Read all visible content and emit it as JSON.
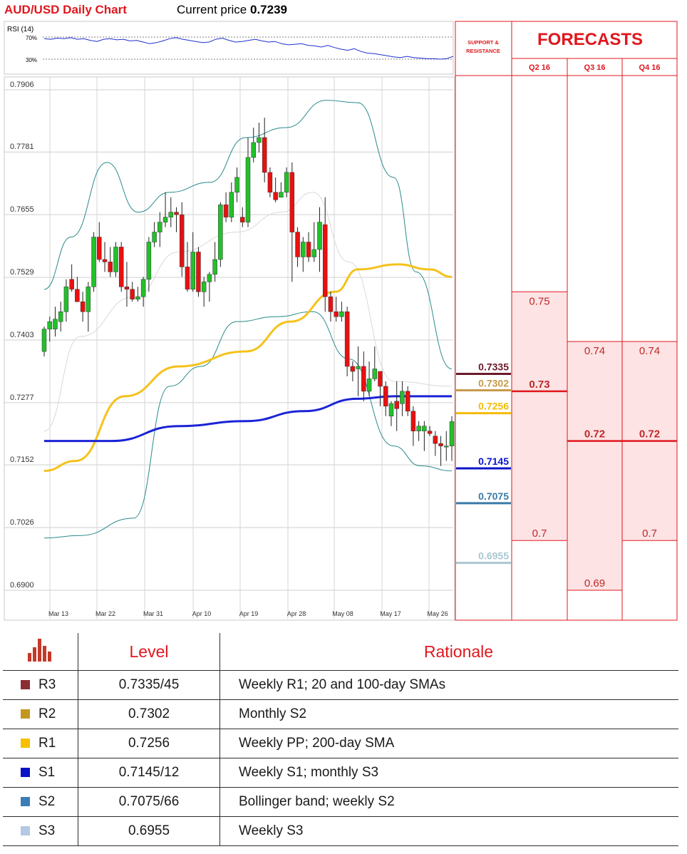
{
  "header": {
    "title": "AUD/USD Daily Chart",
    "price_prefix": "Current price ",
    "price_value": "0.7239"
  },
  "rsi": {
    "label": "RSI (14)",
    "level_high": "70%",
    "level_low": "30%",
    "values": [
      67,
      66,
      68,
      67,
      69,
      66,
      67,
      64,
      62,
      66,
      67,
      65,
      66,
      63,
      64,
      61,
      58,
      60,
      63,
      67,
      69,
      66,
      64,
      62,
      60,
      61,
      66,
      68,
      64,
      61,
      62,
      64,
      66,
      63,
      61,
      62,
      58,
      56,
      57,
      58,
      55,
      54,
      52,
      55,
      51,
      48,
      46,
      49,
      44,
      41,
      40,
      38,
      36,
      34,
      33,
      35,
      33,
      32,
      31,
      31,
      30,
      31,
      35
    ]
  },
  "chart_data": {
    "type": "line",
    "title": "AUD/USD Daily Chart",
    "ylim": [
      0.6877,
      0.7906
    ],
    "y_ticks": [
      "0.7906",
      "0.7781",
      "0.7655",
      "0.7529",
      "0.7403",
      "0.7277",
      "0.7152",
      "0.7026",
      "0.6900"
    ],
    "x_ticks": [
      "Mar 13",
      "Mar 22",
      "Mar 31",
      "Apr 10",
      "Apr 19",
      "Apr 28",
      "May 08",
      "May 17",
      "May 26"
    ],
    "candles": [
      {
        "o": 0.738,
        "h": 0.743,
        "l": 0.737,
        "c": 0.7425
      },
      {
        "o": 0.7425,
        "h": 0.745,
        "l": 0.74,
        "c": 0.744
      },
      {
        "o": 0.7425,
        "h": 0.747,
        "l": 0.741,
        "c": 0.7445
      },
      {
        "o": 0.744,
        "h": 0.748,
        "l": 0.742,
        "c": 0.746
      },
      {
        "o": 0.746,
        "h": 0.7525,
        "l": 0.744,
        "c": 0.751
      },
      {
        "o": 0.7525,
        "h": 0.7555,
        "l": 0.75,
        "c": 0.7505
      },
      {
        "o": 0.7505,
        "h": 0.753,
        "l": 0.748,
        "c": 0.748
      },
      {
        "o": 0.748,
        "h": 0.75,
        "l": 0.744,
        "c": 0.746
      },
      {
        "o": 0.746,
        "h": 0.752,
        "l": 0.742,
        "c": 0.751
      },
      {
        "o": 0.751,
        "h": 0.762,
        "l": 0.75,
        "c": 0.761
      },
      {
        "o": 0.761,
        "h": 0.764,
        "l": 0.756,
        "c": 0.7565
      },
      {
        "o": 0.7565,
        "h": 0.76,
        "l": 0.754,
        "c": 0.756
      },
      {
        "o": 0.756,
        "h": 0.759,
        "l": 0.753,
        "c": 0.754
      },
      {
        "o": 0.754,
        "h": 0.76,
        "l": 0.753,
        "c": 0.759
      },
      {
        "o": 0.759,
        "h": 0.76,
        "l": 0.75,
        "c": 0.751
      },
      {
        "o": 0.751,
        "h": 0.756,
        "l": 0.747,
        "c": 0.7505
      },
      {
        "o": 0.7505,
        "h": 0.752,
        "l": 0.748,
        "c": 0.7485
      },
      {
        "o": 0.7485,
        "h": 0.751,
        "l": 0.748,
        "c": 0.749
      },
      {
        "o": 0.749,
        "h": 0.753,
        "l": 0.747,
        "c": 0.7525
      },
      {
        "o": 0.7525,
        "h": 0.761,
        "l": 0.75,
        "c": 0.76
      },
      {
        "o": 0.76,
        "h": 0.764,
        "l": 0.759,
        "c": 0.762
      },
      {
        "o": 0.762,
        "h": 0.766,
        "l": 0.759,
        "c": 0.764
      },
      {
        "o": 0.764,
        "h": 0.77,
        "l": 0.763,
        "c": 0.765
      },
      {
        "o": 0.765,
        "h": 0.769,
        "l": 0.763,
        "c": 0.766
      },
      {
        "o": 0.766,
        "h": 0.767,
        "l": 0.762,
        "c": 0.7655
      },
      {
        "o": 0.7655,
        "h": 0.768,
        "l": 0.753,
        "c": 0.755
      },
      {
        "o": 0.755,
        "h": 0.76,
        "l": 0.75,
        "c": 0.7505
      },
      {
        "o": 0.7505,
        "h": 0.762,
        "l": 0.75,
        "c": 0.758
      },
      {
        "o": 0.758,
        "h": 0.759,
        "l": 0.749,
        "c": 0.75
      },
      {
        "o": 0.75,
        "h": 0.753,
        "l": 0.747,
        "c": 0.752
      },
      {
        "o": 0.752,
        "h": 0.754,
        "l": 0.748,
        "c": 0.7535
      },
      {
        "o": 0.7535,
        "h": 0.76,
        "l": 0.752,
        "c": 0.7565
      },
      {
        "o": 0.7565,
        "h": 0.768,
        "l": 0.755,
        "c": 0.7675
      },
      {
        "o": 0.7675,
        "h": 0.77,
        "l": 0.764,
        "c": 0.765
      },
      {
        "o": 0.765,
        "h": 0.772,
        "l": 0.764,
        "c": 0.77
      },
      {
        "o": 0.77,
        "h": 0.775,
        "l": 0.768,
        "c": 0.773
      },
      {
        "o": 0.765,
        "h": 0.767,
        "l": 0.763,
        "c": 0.764
      },
      {
        "o": 0.764,
        "h": 0.781,
        "l": 0.763,
        "c": 0.777
      },
      {
        "o": 0.777,
        "h": 0.783,
        "l": 0.776,
        "c": 0.78
      },
      {
        "o": 0.78,
        "h": 0.784,
        "l": 0.778,
        "c": 0.781
      },
      {
        "o": 0.781,
        "h": 0.785,
        "l": 0.772,
        "c": 0.774
      },
      {
        "o": 0.774,
        "h": 0.775,
        "l": 0.769,
        "c": 0.77
      },
      {
        "o": 0.77,
        "h": 0.773,
        "l": 0.768,
        "c": 0.7685
      },
      {
        "o": 0.769,
        "h": 0.772,
        "l": 0.769,
        "c": 0.77
      },
      {
        "o": 0.77,
        "h": 0.775,
        "l": 0.769,
        "c": 0.774
      },
      {
        "o": 0.774,
        "h": 0.776,
        "l": 0.752,
        "c": 0.762
      },
      {
        "o": 0.762,
        "h": 0.763,
        "l": 0.755,
        "c": 0.757
      },
      {
        "o": 0.757,
        "h": 0.761,
        "l": 0.754,
        "c": 0.76
      },
      {
        "o": 0.76,
        "h": 0.762,
        "l": 0.756,
        "c": 0.757
      },
      {
        "o": 0.757,
        "h": 0.764,
        "l": 0.756,
        "c": 0.7585
      },
      {
        "o": 0.7585,
        "h": 0.767,
        "l": 0.754,
        "c": 0.764
      },
      {
        "o": 0.7635,
        "h": 0.769,
        "l": 0.746,
        "c": 0.749
      },
      {
        "o": 0.749,
        "h": 0.75,
        "l": 0.744,
        "c": 0.746
      },
      {
        "o": 0.746,
        "h": 0.749,
        "l": 0.744,
        "c": 0.745
      },
      {
        "o": 0.745,
        "h": 0.748,
        "l": 0.744,
        "c": 0.746
      },
      {
        "o": 0.746,
        "h": 0.747,
        "l": 0.733,
        "c": 0.735
      },
      {
        "o": 0.735,
        "h": 0.736,
        "l": 0.732,
        "c": 0.734
      },
      {
        "o": 0.7345,
        "h": 0.739,
        "l": 0.729,
        "c": 0.735
      },
      {
        "o": 0.735,
        "h": 0.738,
        "l": 0.728,
        "c": 0.73
      },
      {
        "o": 0.73,
        "h": 0.736,
        "l": 0.729,
        "c": 0.7325
      },
      {
        "o": 0.7325,
        "h": 0.739,
        "l": 0.732,
        "c": 0.7345
      },
      {
        "o": 0.734,
        "h": 0.734,
        "l": 0.727,
        "c": 0.731
      },
      {
        "o": 0.731,
        "h": 0.732,
        "l": 0.725,
        "c": 0.727
      },
      {
        "o": 0.725,
        "h": 0.728,
        "l": 0.723,
        "c": 0.7275
      },
      {
        "o": 0.728,
        "h": 0.732,
        "l": 0.722,
        "c": 0.7265
      },
      {
        "o": 0.7275,
        "h": 0.732,
        "l": 0.725,
        "c": 0.73
      },
      {
        "o": 0.73,
        "h": 0.731,
        "l": 0.725,
        "c": 0.726
      },
      {
        "o": 0.726,
        "h": 0.727,
        "l": 0.719,
        "c": 0.722
      },
      {
        "o": 0.722,
        "h": 0.724,
        "l": 0.72,
        "c": 0.723
      },
      {
        "o": 0.722,
        "h": 0.724,
        "l": 0.718,
        "c": 0.723
      },
      {
        "o": 0.722,
        "h": 0.723,
        "l": 0.721,
        "c": 0.7215
      },
      {
        "o": 0.721,
        "h": 0.722,
        "l": 0.717,
        "c": 0.7195
      },
      {
        "o": 0.7195,
        "h": 0.721,
        "l": 0.715,
        "c": 0.719
      },
      {
        "o": 0.719,
        "h": 0.722,
        "l": 0.716,
        "c": 0.719
      },
      {
        "o": 0.719,
        "h": 0.725,
        "l": 0.716,
        "c": 0.7239
      }
    ],
    "lines": {
      "bb_upper": [
        [
          0,
          0.7505
        ],
        [
          6,
          0.761
        ],
        [
          14,
          0.776
        ],
        [
          21,
          0.766
        ],
        [
          28,
          0.77
        ],
        [
          37,
          0.772
        ],
        [
          45,
          0.781
        ],
        [
          54,
          0.783
        ],
        [
          63,
          0.7885
        ],
        [
          70,
          0.788
        ],
        [
          78,
          0.773
        ],
        [
          83,
          0.754
        ],
        [
          91,
          0.7345
        ]
      ],
      "bb_mid": [
        [
          0,
          0.722
        ],
        [
          8,
          0.741
        ],
        [
          20,
          0.749
        ],
        [
          30,
          0.758
        ],
        [
          43,
          0.762
        ],
        [
          53,
          0.766
        ],
        [
          60,
          0.77
        ],
        [
          68,
          0.756
        ],
        [
          78,
          0.732
        ],
        [
          91,
          0.731
        ]
      ],
      "bb_lower": [
        [
          0,
          0.7005
        ],
        [
          8,
          0.701
        ],
        [
          20,
          0.7045
        ],
        [
          28,
          0.731
        ],
        [
          35,
          0.735
        ],
        [
          43,
          0.744
        ],
        [
          52,
          0.745
        ],
        [
          60,
          0.746
        ],
        [
          68,
          0.7365
        ],
        [
          78,
          0.719
        ],
        [
          84,
          0.715
        ],
        [
          91,
          0.714
        ]
      ],
      "sma_yellow": [
        [
          0,
          0.714
        ],
        [
          7,
          0.716
        ],
        [
          18,
          0.729
        ],
        [
          30,
          0.735
        ],
        [
          45,
          0.738
        ],
        [
          55,
          0.744
        ],
        [
          65,
          0.75
        ],
        [
          70,
          0.7545
        ],
        [
          79,
          0.7555
        ],
        [
          86,
          0.7545
        ],
        [
          91,
          0.753
        ]
      ],
      "sma_blue": [
        [
          0,
          0.72
        ],
        [
          15,
          0.72
        ],
        [
          30,
          0.723
        ],
        [
          45,
          0.724
        ],
        [
          58,
          0.726
        ],
        [
          70,
          0.7285
        ],
        [
          78,
          0.729
        ],
        [
          91,
          0.729
        ]
      ]
    }
  },
  "support_resistance": {
    "heading_line1": "SUPPORT &",
    "heading_line2": "RESISTANCE",
    "levels": [
      {
        "label": "0.7335",
        "value": 0.7335,
        "color": "#6b1a2a"
      },
      {
        "label": "0.7302",
        "value": 0.7302,
        "color": "#c79a4a"
      },
      {
        "label": "0.7256",
        "value": 0.7256,
        "color": "#f2bc00"
      },
      {
        "label": "0.7145",
        "value": 0.7145,
        "color": "#0d14c9"
      },
      {
        "label": "0.7075",
        "value": 0.7075,
        "color": "#3a7aa8"
      },
      {
        "label": "0.6955",
        "value": 0.6955,
        "color": "#a9c7d1"
      }
    ]
  },
  "forecasts": {
    "title": "FORECASTS",
    "columns": [
      {
        "label": "Q2 16",
        "high": 0.75,
        "high_label": "0.75",
        "mid": 0.73,
        "mid_label": "0.73",
        "low": 0.7,
        "low_label": "0.7"
      },
      {
        "label": "Q3 16",
        "high": 0.74,
        "high_label": "0.74",
        "mid": 0.72,
        "mid_label": "0.72",
        "low": 0.69,
        "low_label": "0.69"
      },
      {
        "label": "Q4 16",
        "high": 0.74,
        "high_label": "0.74",
        "mid": 0.72,
        "mid_label": "0.72",
        "low": 0.7,
        "low_label": "0.7"
      }
    ]
  },
  "table": {
    "headers": {
      "level": "Level",
      "rationale": "Rationale"
    },
    "rows": [
      {
        "tag": "R3",
        "color": "#8b2e33",
        "level": "0.7335/45",
        "rationale": "Weekly R1; 20 and 100-day SMAs"
      },
      {
        "tag": "R2",
        "color": "#c3961f",
        "level": "0.7302",
        "rationale": "Monthly S2"
      },
      {
        "tag": "R1",
        "color": "#f5c000",
        "level": "0.7256",
        "rationale": "Weekly PP; 200-day SMA"
      },
      {
        "tag": "S1",
        "color": "#0a12c6",
        "level": "0.7145/12",
        "rationale": "Weekly S1; monthly S3"
      },
      {
        "tag": "S2",
        "color": "#3c7db6",
        "level": "0.7075/66",
        "rationale": "Bollinger band; weekly S2"
      },
      {
        "tag": "S3",
        "color": "#b3c8e2",
        "level": "0.6955",
        "rationale": "Weekly S3"
      }
    ]
  },
  "colors": {
    "accent_red": "#e0171e",
    "up_candle": "#22c02a",
    "down_candle": "#e81010"
  }
}
